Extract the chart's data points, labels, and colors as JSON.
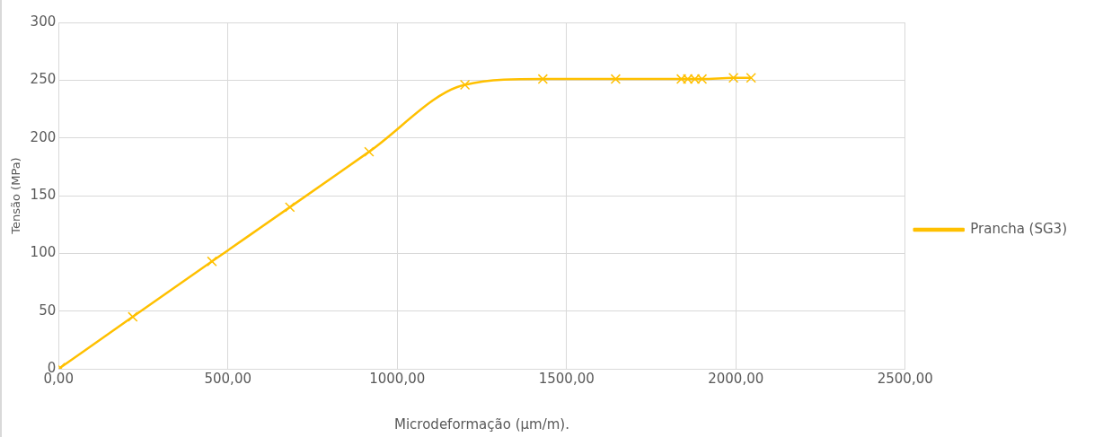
{
  "chart_data": {
    "type": "line",
    "xlabel": "Microdeformação (µm/m).",
    "ylabel": "Tensão (MPa)",
    "series": [
      {
        "name": "Prancha (SG3)",
        "color": "#ffc000",
        "x": [
          5,
          219,
          453,
          683,
          917,
          1200,
          1430,
          1645,
          1839,
          1858,
          1879,
          1900,
          1993,
          2045
        ],
        "values": [
          1,
          45,
          93,
          140,
          188,
          246,
          251,
          251,
          251,
          251,
          251,
          251,
          252,
          252
        ]
      }
    ],
    "xlim": [
      0,
      2500
    ],
    "xticks": [
      {
        "value": 0,
        "label": "0,00"
      },
      {
        "value": 500,
        "label": "500,00"
      },
      {
        "value": 1000,
        "label": "1000,00"
      },
      {
        "value": 1500,
        "label": "1500,00"
      },
      {
        "value": 2000,
        "label": "2000,00"
      },
      {
        "value": 2500,
        "label": "2500,00"
      }
    ],
    "ylim": [
      0,
      300
    ],
    "yticks": [
      0,
      50,
      100,
      150,
      200,
      250,
      300
    ],
    "grid": true,
    "legend": "right",
    "marker": "cross",
    "line_style": "solid"
  }
}
